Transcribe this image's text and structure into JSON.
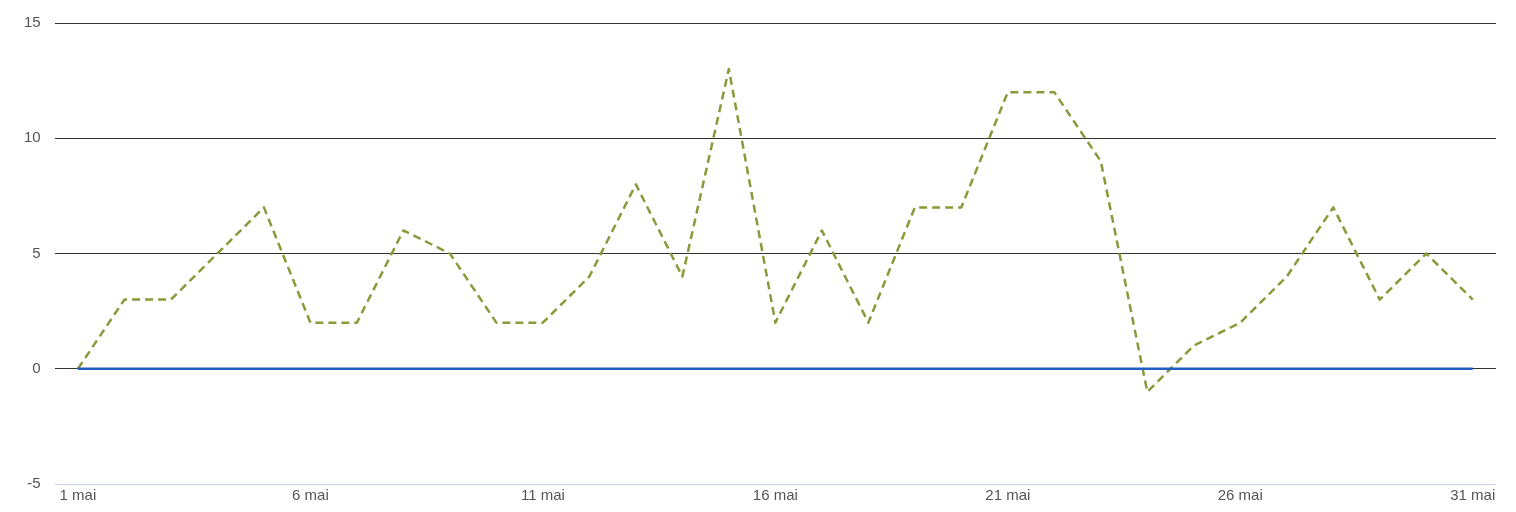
{
  "chart_data": {
    "type": "line",
    "categories": [
      "1 mai",
      null,
      null,
      null,
      null,
      "6 mai",
      null,
      null,
      null,
      null,
      "11 mai",
      null,
      null,
      null,
      null,
      "16 mai",
      null,
      null,
      null,
      null,
      "21 mai",
      null,
      null,
      null,
      null,
      "26 mai",
      null,
      null,
      null,
      null,
      "31 mai"
    ],
    "series": [
      {
        "color": "#1f5fbf",
        "line_style": "solid",
        "values": [
          0,
          0,
          0,
          0,
          0,
          0,
          0,
          0,
          0,
          0,
          0,
          0,
          0,
          0,
          0,
          0,
          0,
          0,
          0,
          0,
          0,
          0,
          0,
          0,
          0,
          0,
          0,
          0,
          0,
          0,
          0
        ]
      },
      {
        "color": "#8a9a3b",
        "line_style": "dashed",
        "values": [
          0,
          3,
          3,
          5,
          7,
          2,
          2,
          6,
          5,
          2,
          2,
          4,
          8,
          4,
          13,
          2,
          6,
          2,
          7,
          7,
          12,
          12,
          9,
          -1,
          1,
          2,
          4,
          7,
          3,
          5,
          3
        ]
      }
    ],
    "ylim": [
      -5,
      15
    ],
    "yticks": [
      -5,
      0,
      5,
      10,
      15
    ],
    "grid": "y",
    "legend": false,
    "marker": "none"
  }
}
